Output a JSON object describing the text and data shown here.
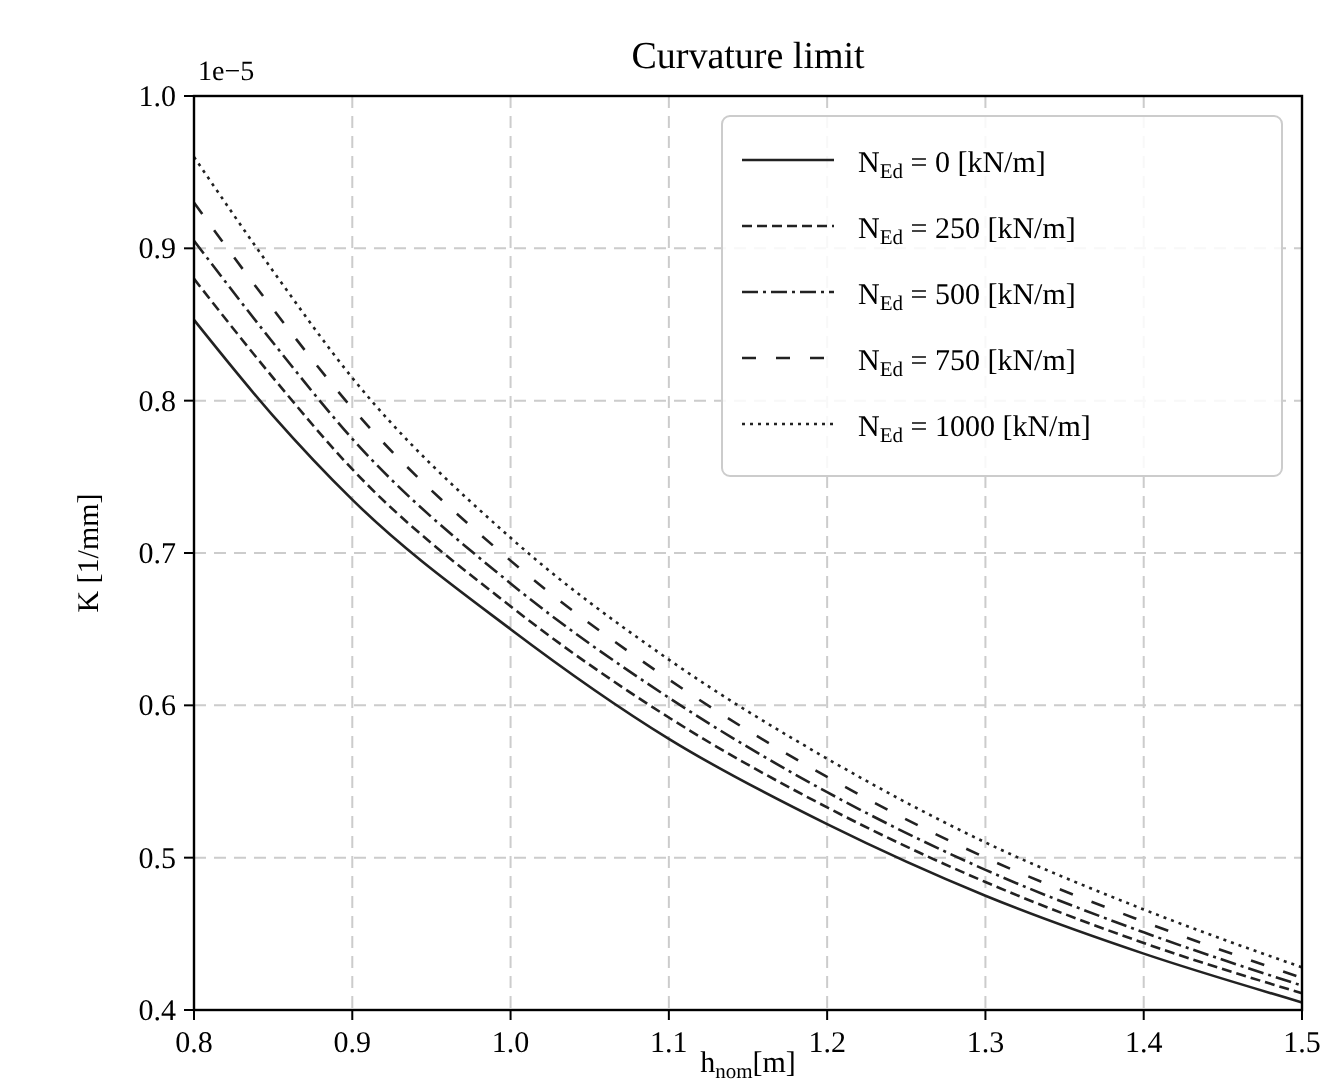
{
  "chart_data": {
    "type": "line",
    "title": "Curvature limit",
    "xlabel": "h$_{nom}$[m]",
    "ylabel": "K [1/mm]",
    "annotations": [
      "1e−5"
    ],
    "x": [
      0.8,
      0.85,
      0.9,
      1.0,
      1.1,
      1.2,
      1.3,
      1.4,
      1.5
    ],
    "xlim": [
      0.8,
      1.5
    ],
    "xticks": [
      0.8,
      0.9,
      {
        "value": 1,
        "label": "1.0"
      },
      1.1,
      1.2,
      1.3,
      1.4,
      1.5
    ],
    "ylim": [
      0.4,
      1.0
    ],
    "yticks": [
      0.4,
      0.5,
      0.6,
      0.7,
      0.8,
      0.9,
      {
        "value": 1,
        "label": "1.0"
      }
    ],
    "grid": true,
    "legend": "top right",
    "series": [
      {
        "name": "N$_{Ed}$ = 0 [kN/m]",
        "color": "#222222",
        "line_style": "solid",
        "values": [
          0.853,
          0.79,
          0.735,
          0.65,
          0.578,
          0.522,
          0.475,
          0.437,
          0.405
        ]
      },
      {
        "name": "N$_{Ed}$ = 250 [kN/m]",
        "color": "#222222",
        "line_style": "dashed",
        "values": [
          0.88,
          0.815,
          0.755,
          0.665,
          0.592,
          0.533,
          0.484,
          0.444,
          0.411
        ]
      },
      {
        "name": "N$_{Ed}$ = 500 [kN/m]",
        "color": "#222222",
        "line_style": "dashdot",
        "values": [
          0.905,
          0.838,
          0.775,
          0.68,
          0.605,
          0.543,
          0.492,
          0.451,
          0.416
        ]
      },
      {
        "name": "N$_{Ed}$ = 750 [kN/m]",
        "color": "#222222",
        "line_style": "longdash",
        "values": [
          0.93,
          0.86,
          0.795,
          0.695,
          0.617,
          0.553,
          0.5,
          0.458,
          0.421
        ]
      },
      {
        "name": "N$_{Ed}$ = 1000 [kN/m]",
        "color": "#222222",
        "line_style": "dotted",
        "values": [
          0.96,
          0.885,
          0.815,
          0.71,
          0.63,
          0.565,
          0.51,
          0.466,
          0.428
        ]
      }
    ]
  }
}
